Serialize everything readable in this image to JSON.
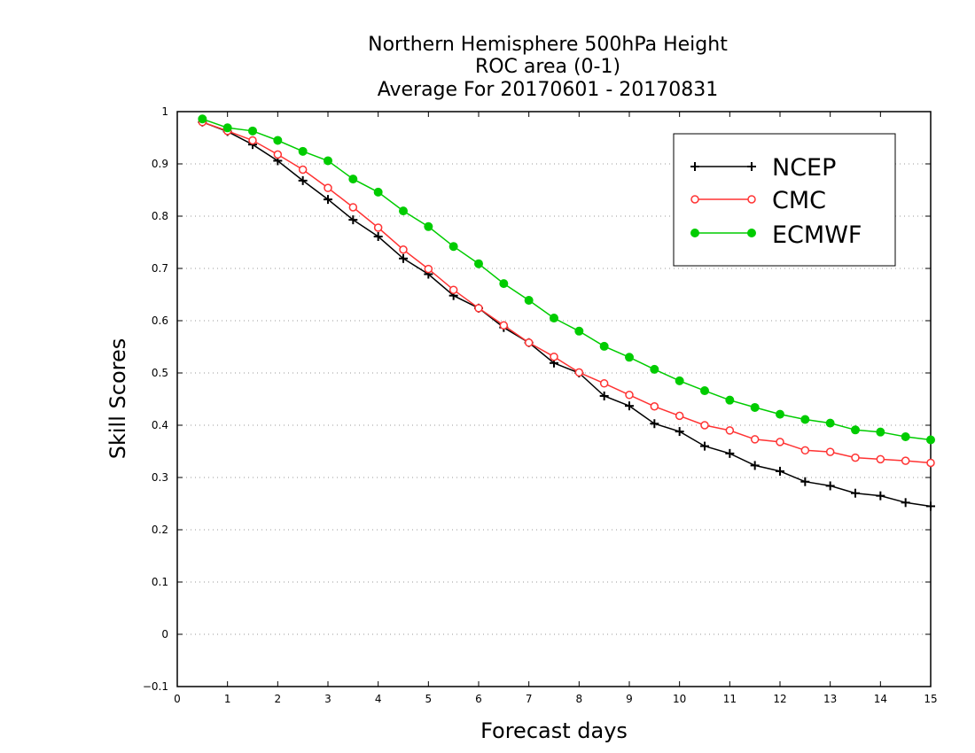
{
  "chart_data": {
    "type": "line",
    "title": [
      "Northern Hemisphere 500hPa Height",
      "ROC area (0-1)",
      "Average For 20170601 - 20170831"
    ],
    "xlabel": "Forecast days",
    "ylabel": "Skill Scores",
    "xlim": [
      0,
      15
    ],
    "ylim": [
      -0.1,
      1
    ],
    "xticks": [
      0,
      1,
      2,
      3,
      4,
      5,
      6,
      7,
      8,
      9,
      10,
      11,
      12,
      13,
      14,
      15
    ],
    "yticks": [
      -0.1,
      0,
      0.1,
      0.2,
      0.3,
      0.4,
      0.5,
      0.6,
      0.7,
      0.8,
      0.9,
      1
    ],
    "ytick_labels": [
      "−0.1",
      "0",
      "0.1",
      "0.2",
      "0.3",
      "0.4",
      "0.5",
      "0.6",
      "0.7",
      "0.8",
      "0.9",
      "1"
    ],
    "grid": "horizontal dotted",
    "legend_position": "top-right",
    "x": [
      0.5,
      1,
      1.5,
      2,
      2.5,
      3,
      3.5,
      4,
      4.5,
      5,
      5.5,
      6,
      6.5,
      7,
      7.5,
      8,
      8.5,
      9,
      9.5,
      10,
      10.5,
      11,
      11.5,
      12,
      12.5,
      13,
      13.5,
      14,
      14.5,
      15
    ],
    "series": [
      {
        "name": "NCEP",
        "color": "#000000",
        "marker": "plus",
        "values": [
          0.98,
          0.962,
          0.937,
          0.906,
          0.868,
          0.832,
          0.793,
          0.761,
          0.719,
          0.689,
          0.648,
          0.624,
          0.587,
          0.558,
          0.519,
          0.5,
          0.456,
          0.437,
          0.403,
          0.388,
          0.36,
          0.346,
          0.323,
          0.312,
          0.292,
          0.284,
          0.27,
          0.265,
          0.252,
          0.245
        ]
      },
      {
        "name": "CMC",
        "color": "#ff3333",
        "marker": "open-circle",
        "values": [
          0.98,
          0.963,
          0.945,
          0.918,
          0.889,
          0.854,
          0.817,
          0.778,
          0.736,
          0.699,
          0.659,
          0.624,
          0.591,
          0.558,
          0.531,
          0.501,
          0.48,
          0.458,
          0.436,
          0.418,
          0.4,
          0.39,
          0.373,
          0.368,
          0.352,
          0.349,
          0.338,
          0.335,
          0.332,
          0.328
        ]
      },
      {
        "name": "ECMWF",
        "color": "#00cc00",
        "marker": "filled-circle",
        "values": [
          0.986,
          0.969,
          0.963,
          0.945,
          0.924,
          0.906,
          0.871,
          0.846,
          0.81,
          0.78,
          0.742,
          0.709,
          0.671,
          0.639,
          0.605,
          0.58,
          0.551,
          0.53,
          0.507,
          0.485,
          0.466,
          0.448,
          0.434,
          0.421,
          0.411,
          0.404,
          0.391,
          0.387,
          0.378,
          0.372
        ]
      }
    ]
  }
}
